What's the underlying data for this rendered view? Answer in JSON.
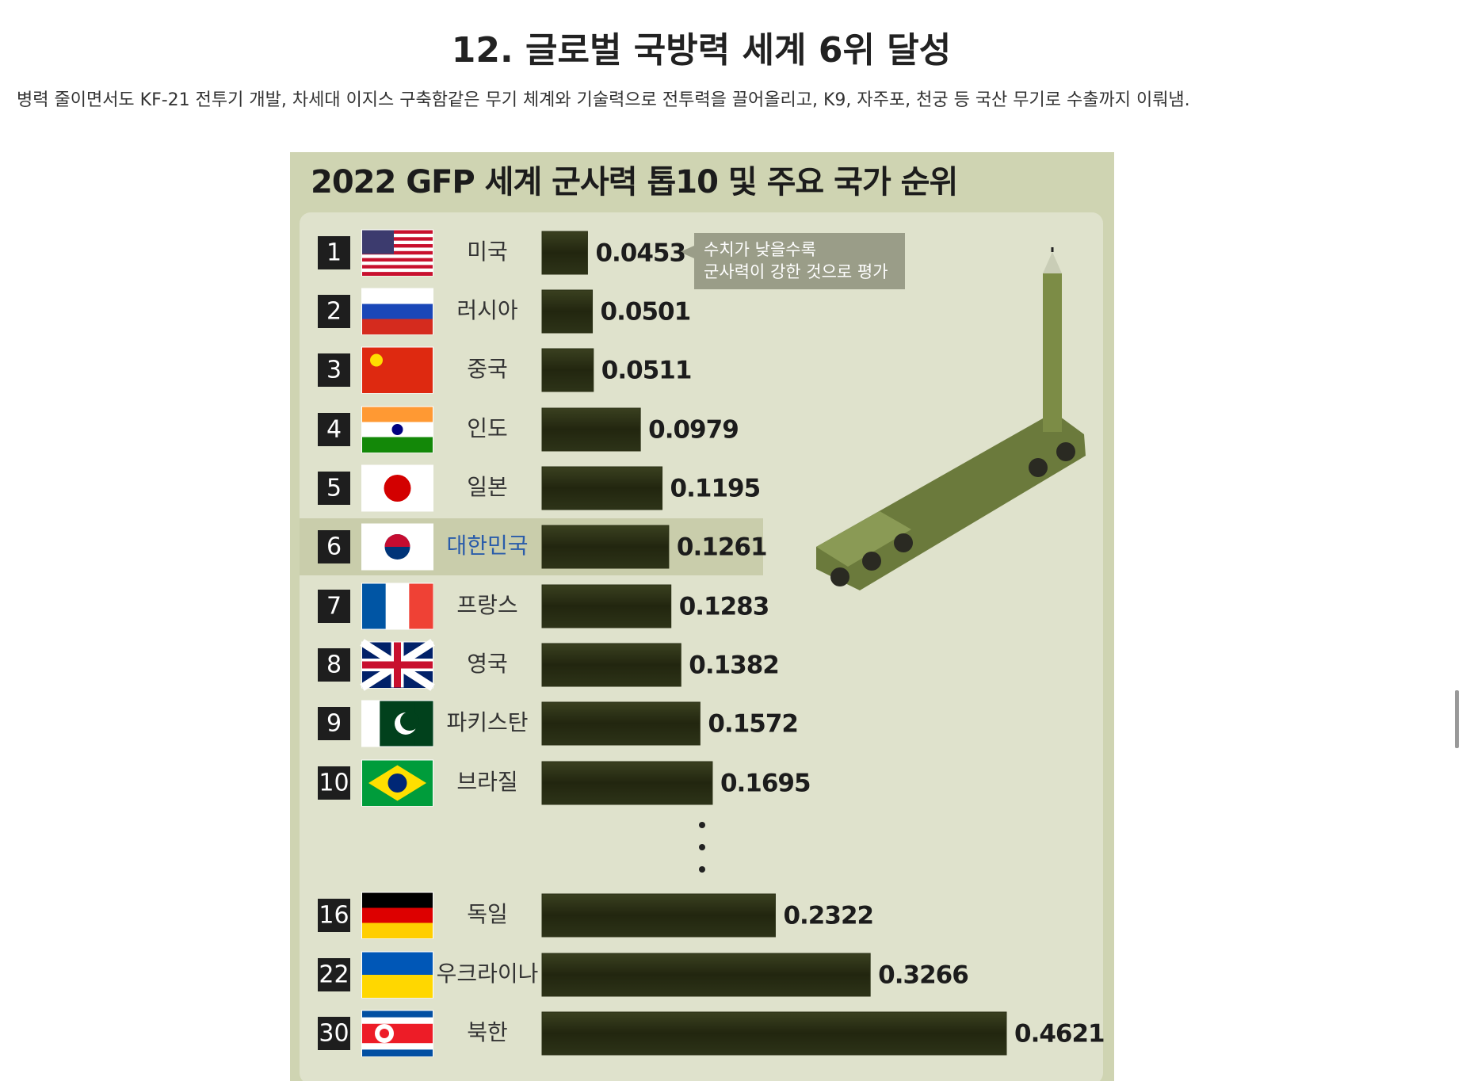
{
  "page": {
    "heading": "12. 글로벌 국방력 세계 6위 달성",
    "text": "병력 줄이면서도 KF-21 전투기 개발, 차세대 이지스 구축함같은 무기 체계와 기술력으로 전투력을 끌어올리고, K9, 자주포, 천궁 등 국산 무기로 수출까지 이뤄냄."
  },
  "chart_data": {
    "type": "bar",
    "orientation": "horizontal",
    "title": "2022 GFP 세계 군사력 톱10 및 주요 국가 순위",
    "annotation": [
      "수치가 낮을수록",
      "군사력이 강한 것으로 평가"
    ],
    "ranks": [
      "1",
      "2",
      "3",
      "4",
      "5",
      "6",
      "7",
      "8",
      "9",
      "10",
      "16",
      "22",
      "30"
    ],
    "categories": [
      "미국",
      "러시아",
      "중국",
      "인도",
      "일본",
      "대한민국",
      "프랑스",
      "영국",
      "파키스탄",
      "브라질",
      "독일",
      "우크라이나",
      "북한"
    ],
    "values": [
      0.0453,
      0.0501,
      0.0511,
      0.0979,
      0.1195,
      0.1261,
      0.1283,
      0.1382,
      0.1572,
      0.1695,
      0.2322,
      0.3266,
      0.4621
    ],
    "color": "#2b3016"
  }
}
